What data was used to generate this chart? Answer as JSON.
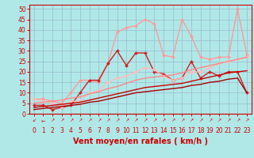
{
  "title": "",
  "xlabel": "Vent moyen/en rafales ( km/h )",
  "background_color": "#b0e8e8",
  "grid_color": "#99bbcc",
  "x_values": [
    0,
    1,
    2,
    3,
    4,
    5,
    6,
    7,
    8,
    9,
    10,
    11,
    12,
    13,
    14,
    15,
    16,
    17,
    18,
    19,
    20,
    21,
    22,
    23
  ],
  "series": [
    {
      "name": "light_pink_gust",
      "color": "#ff9999",
      "linewidth": 1.0,
      "marker": "D",
      "markersize": 2.0,
      "y": [
        7,
        7,
        6,
        5,
        10,
        16,
        16,
        15,
        24,
        39,
        41,
        42,
        45,
        43,
        28,
        27,
        45,
        37,
        27,
        26,
        27,
        27,
        50,
        28
      ]
    },
    {
      "name": "medium_red_gust",
      "color": "#cc2222",
      "linewidth": 1.0,
      "marker": "D",
      "markersize": 2.0,
      "y": [
        4,
        4,
        2,
        3,
        4,
        10,
        16,
        16,
        24,
        30,
        23,
        29,
        29,
        20,
        19,
        16,
        17,
        25,
        17,
        20,
        18,
        20,
        20,
        10
      ]
    },
    {
      "name": "light_pink_mean",
      "color": "#ffbbbb",
      "linewidth": 1.0,
      "marker": "D",
      "markersize": 2.0,
      "y": [
        7,
        6,
        5,
        3,
        6,
        6,
        10,
        11,
        15,
        17,
        18,
        20,
        22,
        21,
        18,
        16,
        17,
        20,
        20,
        22,
        24,
        25,
        26,
        27
      ]
    },
    {
      "name": "dark_red_linear1",
      "color": "#cc0000",
      "linewidth": 1.0,
      "marker": "None",
      "y": [
        3,
        3.5,
        4,
        4.5,
        5,
        5.5,
        6.5,
        7.5,
        8.5,
        9.5,
        10.5,
        11.5,
        12.5,
        13.0,
        13.5,
        14.0,
        14.5,
        15.5,
        16.5,
        17.5,
        18.5,
        19.5,
        20.0,
        20.5
      ]
    },
    {
      "name": "medium_pink_linear2",
      "color": "#ff8888",
      "linewidth": 1.0,
      "marker": "None",
      "y": [
        5,
        5.5,
        6,
        6.5,
        7.5,
        8.0,
        9.5,
        10.5,
        12,
        13,
        14.5,
        16,
        17,
        17.5,
        18,
        18.5,
        19.5,
        21,
        22,
        23,
        24,
        25,
        26,
        27
      ]
    },
    {
      "name": "dark_linear3",
      "color": "#aa0000",
      "linewidth": 1.0,
      "marker": "None",
      "y": [
        2,
        2.5,
        3,
        3.5,
        4,
        4.5,
        5.5,
        6,
        7,
        8,
        9,
        10,
        10.5,
        11,
        11.5,
        12,
        12.5,
        13.5,
        14,
        15,
        15.5,
        16.5,
        17,
        10
      ]
    }
  ],
  "xlim": [
    -0.5,
    23.5
  ],
  "ylim": [
    0,
    52
  ],
  "yticks": [
    0,
    5,
    10,
    15,
    20,
    25,
    30,
    35,
    40,
    45,
    50
  ],
  "xticks": [
    0,
    1,
    2,
    3,
    4,
    5,
    6,
    7,
    8,
    9,
    10,
    11,
    12,
    13,
    14,
    15,
    16,
    17,
    18,
    19,
    20,
    21,
    22,
    23
  ],
  "arrow_directions": [
    225,
    270,
    315,
    45,
    315,
    45,
    45,
    315,
    315,
    315,
    315,
    315,
    315,
    315,
    315,
    45,
    45,
    45,
    315,
    45,
    45,
    45,
    315,
    315
  ],
  "tick_fontsize": 5.5,
  "label_fontsize": 7
}
